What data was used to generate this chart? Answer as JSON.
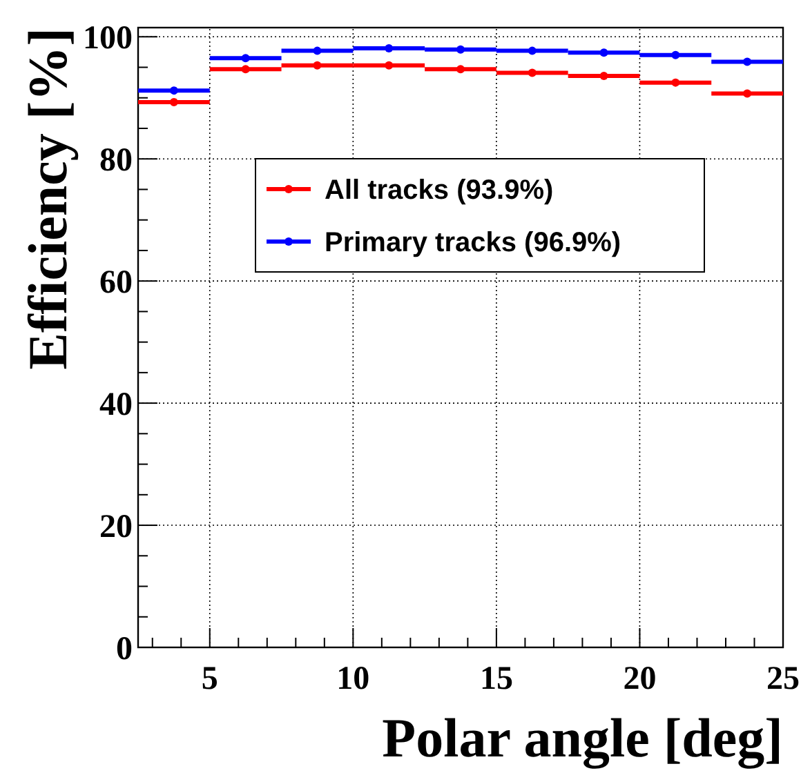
{
  "chart_data": {
    "type": "scatter",
    "xlabel": "Polar angle [deg]",
    "ylabel": "Efficiency [%]",
    "x": [
      3.75,
      6.25,
      8.75,
      11.25,
      13.75,
      16.25,
      18.75,
      21.25,
      23.75
    ],
    "series": [
      {
        "name": "All tracks (93.9%)",
        "color": "#ff0000",
        "values": [
          89.3,
          94.7,
          95.3,
          95.3,
          94.7,
          94.1,
          93.6,
          92.5,
          90.7
        ],
        "xerrors": [
          1.25,
          1.25,
          1.25,
          1.25,
          1.25,
          1.25,
          1.25,
          1.25,
          1.25
        ]
      },
      {
        "name": "Primary tracks (96.9%)",
        "color": "#0000ff",
        "values": [
          91.2,
          96.5,
          97.7,
          98.1,
          97.9,
          97.7,
          97.4,
          97.0,
          95.9
        ],
        "xerrors": [
          1.25,
          1.25,
          1.25,
          1.25,
          1.25,
          1.25,
          1.25,
          1.25,
          1.25
        ]
      }
    ],
    "xlim": [
      2.5,
      25
    ],
    "ylim": [
      0,
      101.5
    ],
    "xticks": [
      {
        "value": 3,
        "label": null
      },
      {
        "value": 4,
        "label": null
      },
      5,
      {
        "value": 6,
        "label": null
      },
      {
        "value": 7,
        "label": null
      },
      {
        "value": 8,
        "label": null
      },
      {
        "value": 9,
        "label": null
      },
      10,
      {
        "value": 11,
        "label": null
      },
      {
        "value": 12,
        "label": null
      },
      {
        "value": 13,
        "label": null
      },
      {
        "value": 14,
        "label": null
      },
      15,
      {
        "value": 16,
        "label": null
      },
      {
        "value": 17,
        "label": null
      },
      {
        "value": 18,
        "label": null
      },
      {
        "value": 19,
        "label": null
      },
      20,
      {
        "value": 21,
        "label": null
      },
      {
        "value": 22,
        "label": null
      },
      {
        "value": 23,
        "label": null
      },
      {
        "value": 24,
        "label": null
      },
      25
    ],
    "yticks": [
      0,
      {
        "value": 5,
        "label": null
      },
      {
        "value": 10,
        "label": null
      },
      {
        "value": 15,
        "label": null
      },
      20,
      {
        "value": 25,
        "label": null
      },
      {
        "value": 30,
        "label": null
      },
      {
        "value": 35,
        "label": null
      },
      40,
      {
        "value": 45,
        "label": null
      },
      {
        "value": 50,
        "label": null
      },
      {
        "value": 55,
        "label": null
      },
      60,
      {
        "value": 65,
        "label": null
      },
      {
        "value": 70,
        "label": null
      },
      {
        "value": 75,
        "label": null
      },
      80,
      {
        "value": 85,
        "label": null
      },
      {
        "value": 90,
        "label": null
      },
      {
        "value": 95,
        "label": null
      },
      100
    ],
    "grid": true,
    "legend": "top",
    "marker": "circle",
    "line_style": "solid"
  }
}
